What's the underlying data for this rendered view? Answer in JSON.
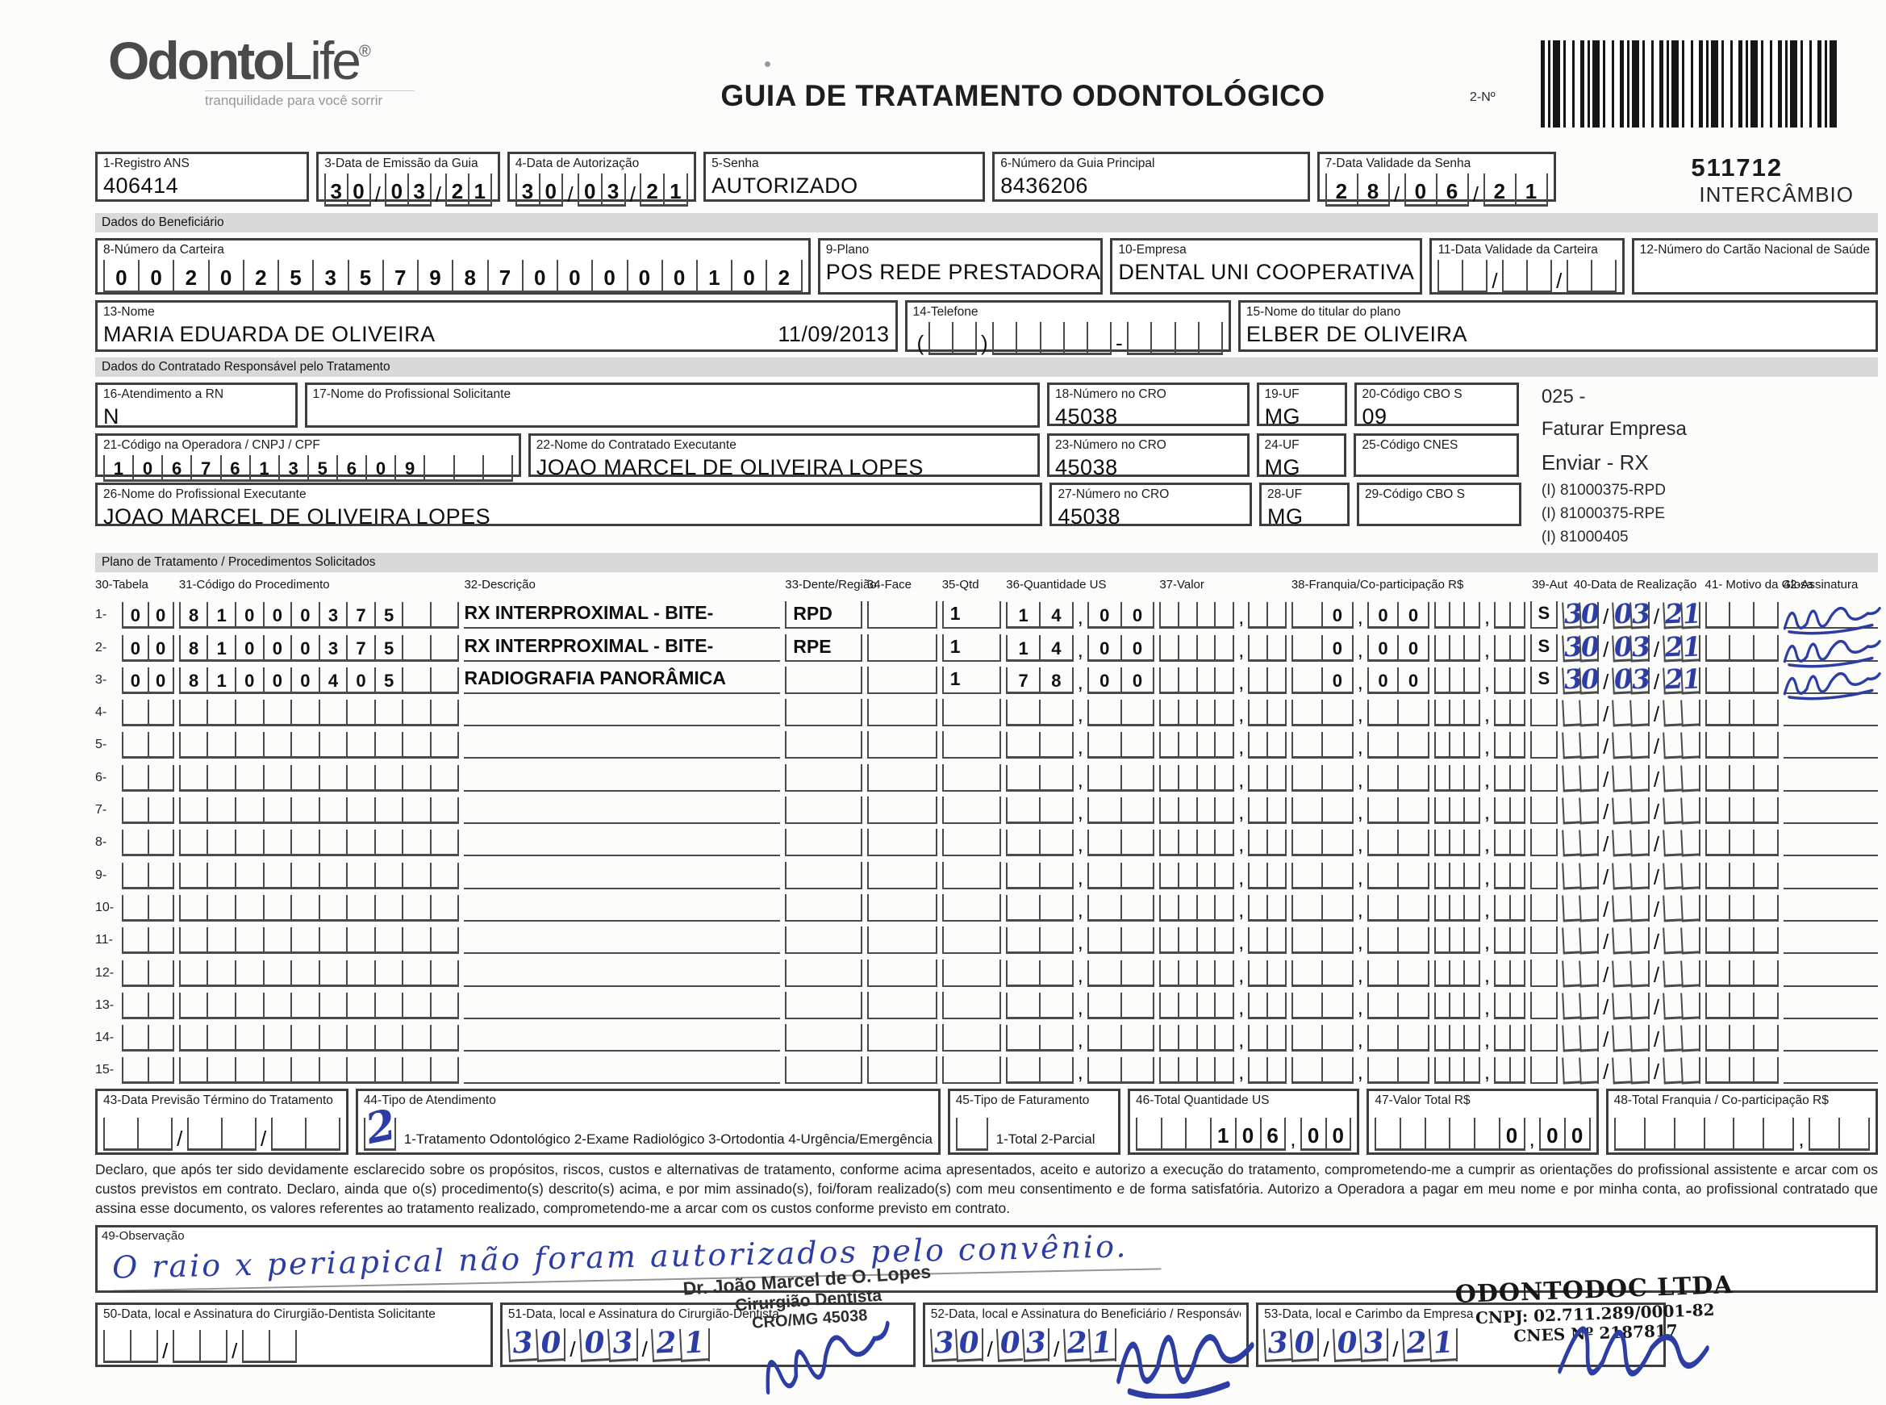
{
  "header": {
    "brand1": "Odonto",
    "brand2": "Life",
    "brand_reg": "®",
    "tagline": "tranquilidade para você sorrir",
    "title": "GUIA DE TRATAMENTO ODONTOLÓGICO",
    "barcode_label": "2-Nº",
    "guide_number": "511712",
    "guide_mode": "INTERCÂMBIO"
  },
  "sections": {
    "beneficiary": "Dados do Beneficiário",
    "provider": "Dados do Contratado Responsável pelo Tratamento",
    "plan": "Plano de Tratamento / Procedimentos Solicitados"
  },
  "fields": {
    "registro_ans": {
      "label": "1-Registro ANS",
      "value": "406414"
    },
    "data_emissao": {
      "label": "3-Data de Emissão da Guia",
      "value": "300321"
    },
    "data_autorizacao": {
      "label": "4-Data de Autorização",
      "value": "300321"
    },
    "senha": {
      "label": "5-Senha",
      "value": "AUTORIZADO"
    },
    "numero_guia_principal": {
      "label": "6-Número da Guia Principal",
      "value": "8436206"
    },
    "data_validade_senha": {
      "label": "7-Data Validade da Senha",
      "value": "280621"
    },
    "numero_carteira": {
      "label": "8-Número da Carteira",
      "value": "00202535798700000102"
    },
    "plano": {
      "label": "9-Plano",
      "value": "POS REDE PRESTADORA"
    },
    "empresa": {
      "label": "10-Empresa",
      "value": "DENTAL UNI  COOPERATIVA"
    },
    "data_validade_carteira": {
      "label": "11-Data Validade da Carteira",
      "value": ""
    },
    "cartao_nacional_saude": {
      "label": "12-Número do Cartão Nacional de Saúde",
      "value": ""
    },
    "nome": {
      "label": "13-Nome",
      "value": "MARIA EDUARDA DE OLIVEIRA",
      "nascimento": "11/09/2013"
    },
    "telefone": {
      "label": "14-Telefone",
      "value": ""
    },
    "titular": {
      "label": "15-Nome do titular do plano",
      "value": "ELBER DE OLIVEIRA"
    },
    "atendimento_rn": {
      "label": "16-Atendimento a RN",
      "value": "N"
    },
    "prof_solicitante": {
      "label": "17-Nome do Profissional Solicitante",
      "value": ""
    },
    "cro_solicitante": {
      "label": "18-Número no CRO",
      "value": "45038"
    },
    "uf_solicitante": {
      "label": "19-UF",
      "value": "MG"
    },
    "cbo_solicitante": {
      "label": "20-Código CBO S",
      "value": "09"
    },
    "codigo_operadora": {
      "label": "21-Código na Operadora / CNPJ / CPF",
      "value": "10676135609"
    },
    "contratado_executante": {
      "label": "22-Nome do Contratado Executante",
      "value": "JOAO MARCEL DE OLIVEIRA LOPES"
    },
    "cro_executante": {
      "label": "23-Número no CRO",
      "value": "45038"
    },
    "uf_executante": {
      "label": "24-UF",
      "value": "MG"
    },
    "cnes": {
      "label": "25-Código CNES",
      "value": ""
    },
    "prof_executante": {
      "label": "26-Nome do Profissional Executante",
      "value": "JOAO MARCEL DE OLIVEIRA LOPES"
    },
    "cro_prof_executante": {
      "label": "27-Número no CRO",
      "value": "45038"
    },
    "uf_prof_executante": {
      "label": "28-UF",
      "value": "MG"
    },
    "cbo_executante": {
      "label": "29-Código CBO S",
      "value": ""
    }
  },
  "annotations": {
    "line1": "025 -",
    "line2": "Faturar Empresa",
    "line3": "Enviar - RX",
    "line4": "(I) 81000375-RPD",
    "line5": "(I) 81000375-RPE",
    "line6": "(I) 81000405"
  },
  "table": {
    "headers": {
      "h30": "30-Tabela",
      "h31": "31-Código do Procedimento",
      "h32": "32-Descrição",
      "h33": "33-Dente/Região",
      "h34": "34-Face",
      "h35": "35-Qtd",
      "h36": "36-Quantidade US",
      "h37": "37-Valor",
      "h38": "38-Franquia/Co-participação R$",
      "h39": "39-Aut",
      "h40": "40-Data de Realização",
      "h41": "41- Motivo da Glosa",
      "h42": "42-Assinatura"
    },
    "rows": [
      {
        "n": "1-",
        "tabela": "00",
        "codigo": "81000375",
        "descricao": "RX INTERPROXIMAL - BITE-",
        "dente": "RPD",
        "face": "",
        "qtd": "1",
        "qtd_us": "1400",
        "valor": "",
        "franquia": " 000",
        "extra": "",
        "aut": "S",
        "data": "300321",
        "motivo": "",
        "assinado": true
      },
      {
        "n": "2-",
        "tabela": "00",
        "codigo": "81000375",
        "descricao": "RX INTERPROXIMAL - BITE-",
        "dente": "RPE",
        "face": "",
        "qtd": "1",
        "qtd_us": "1400",
        "valor": "",
        "franquia": " 000",
        "extra": "",
        "aut": "S",
        "data": "300321",
        "motivo": "",
        "assinado": true
      },
      {
        "n": "3-",
        "tabela": "00",
        "codigo": "81000405",
        "descricao": "RADIOGRAFIA PANORÂMICA",
        "dente": "",
        "face": "",
        "qtd": "1",
        "qtd_us": "7800",
        "valor": "",
        "franquia": " 000",
        "extra": "",
        "aut": "S",
        "data": "300321",
        "motivo": "",
        "assinado": true
      },
      {
        "n": "4-",
        "tabela": "",
        "codigo": "",
        "descricao": "",
        "dente": "",
        "face": "",
        "qtd": "",
        "qtd_us": "",
        "valor": "",
        "franquia": "",
        "extra": "",
        "aut": "",
        "data": "",
        "motivo": "",
        "assinado": false
      },
      {
        "n": "5-",
        "tabela": "",
        "codigo": "",
        "descricao": "",
        "dente": "",
        "face": "",
        "qtd": "",
        "qtd_us": "",
        "valor": "",
        "franquia": "",
        "extra": "",
        "aut": "",
        "data": "",
        "motivo": "",
        "assinado": false
      },
      {
        "n": "6-",
        "tabela": "",
        "codigo": "",
        "descricao": "",
        "dente": "",
        "face": "",
        "qtd": "",
        "qtd_us": "",
        "valor": "",
        "franquia": "",
        "extra": "",
        "aut": "",
        "data": "",
        "motivo": "",
        "assinado": false
      },
      {
        "n": "7-",
        "tabela": "",
        "codigo": "",
        "descricao": "",
        "dente": "",
        "face": "",
        "qtd": "",
        "qtd_us": "",
        "valor": "",
        "franquia": "",
        "extra": "",
        "aut": "",
        "data": "",
        "motivo": "",
        "assinado": false
      },
      {
        "n": "8-",
        "tabela": "",
        "codigo": "",
        "descricao": "",
        "dente": "",
        "face": "",
        "qtd": "",
        "qtd_us": "",
        "valor": "",
        "franquia": "",
        "extra": "",
        "aut": "",
        "data": "",
        "motivo": "",
        "assinado": false
      },
      {
        "n": "9-",
        "tabela": "",
        "codigo": "",
        "descricao": "",
        "dente": "",
        "face": "",
        "qtd": "",
        "qtd_us": "",
        "valor": "",
        "franquia": "",
        "extra": "",
        "aut": "",
        "data": "",
        "motivo": "",
        "assinado": false
      },
      {
        "n": "10-",
        "tabela": "",
        "codigo": "",
        "descricao": "",
        "dente": "",
        "face": "",
        "qtd": "",
        "qtd_us": "",
        "valor": "",
        "franquia": "",
        "extra": "",
        "aut": "",
        "data": "",
        "motivo": "",
        "assinado": false
      },
      {
        "n": "11-",
        "tabela": "",
        "codigo": "",
        "descricao": "",
        "dente": "",
        "face": "",
        "qtd": "",
        "qtd_us": "",
        "valor": "",
        "franquia": "",
        "extra": "",
        "aut": "",
        "data": "",
        "motivo": "",
        "assinado": false
      },
      {
        "n": "12-",
        "tabela": "",
        "codigo": "",
        "descricao": "",
        "dente": "",
        "face": "",
        "qtd": "",
        "qtd_us": "",
        "valor": "",
        "franquia": "",
        "extra": "",
        "aut": "",
        "data": "",
        "motivo": "",
        "assinado": false
      },
      {
        "n": "13-",
        "tabela": "",
        "codigo": "",
        "descricao": "",
        "dente": "",
        "face": "",
        "qtd": "",
        "qtd_us": "",
        "valor": "",
        "franquia": "",
        "extra": "",
        "aut": "",
        "data": "",
        "motivo": "",
        "assinado": false
      },
      {
        "n": "14-",
        "tabela": "",
        "codigo": "",
        "descricao": "",
        "dente": "",
        "face": "",
        "qtd": "",
        "qtd_us": "",
        "valor": "",
        "franquia": "",
        "extra": "",
        "aut": "",
        "data": "",
        "motivo": "",
        "assinado": false
      },
      {
        "n": "15-",
        "tabela": "",
        "codigo": "",
        "descricao": "",
        "dente": "",
        "face": "",
        "qtd": "",
        "qtd_us": "",
        "valor": "",
        "franquia": "",
        "extra": "",
        "aut": "",
        "data": "",
        "motivo": "",
        "assinado": false
      }
    ]
  },
  "totals": {
    "previsao_termino": {
      "label": "43-Data Previsão Término do Tratamento",
      "value": ""
    },
    "tipo_atendimento": {
      "label": "44-Tipo de Atendimento",
      "written": "2",
      "options": "1-Tratamento Odontológico  2-Exame Radiológico  3-Ortodontia  4-Urgência/Emergência",
      "value": ""
    },
    "tipo_faturamento": {
      "label": "45-Tipo de Faturamento",
      "options": "1-Total  2-Parcial",
      "value": ""
    },
    "total_quantidade_us": {
      "label": "46-Total Quantidade US",
      "value": "   10600"
    },
    "valor_total": {
      "label": "47-Valor Total R$",
      "value": "     000"
    },
    "total_franquia": {
      "label": "48-Total Franquia / Co-participação R$",
      "value": ""
    }
  },
  "declaration": "Declaro, que após ter sido devidamente esclarecido sobre os propósitos, riscos, custos e alternativas de tratamento, conforme acima apresentados, aceito e autorizo a execução do tratamento, comprometendo-me a cumprir as orientações do profissional assistente e arcar com os custos previstos em contrato. Declaro, ainda que o(s) procedimento(s) descrito(s) acima, e por mim assinado(s), foi/foram realizado(s) com meu consentimento e de forma satisfatória. Autorizo a Operadora a pagar em meu nome e por minha conta, ao profissional contratado que assina esse documento, os valores referentes ao tratamento realizado, comprometendo-me a arcar com os custos conforme previsto em contrato.",
  "observacao": {
    "label": "49-Observação",
    "written": "O raio x periapical não foram autorizados pelo convênio."
  },
  "signatures": {
    "f50": {
      "label": "50-Data, local e Assinatura do Cirurgião-Dentista Solicitante",
      "date": ""
    },
    "f51": {
      "label": "51-Data, local e Assinatura do Cirurgião-Dentista",
      "date": "300321",
      "stamp1": "Dr. João Marcel de O. Lopes",
      "stamp2": "Cirurgião Dentista",
      "stamp3": "CRO/MG 45038"
    },
    "f52": {
      "label": "52-Data, local e Assinatura do Beneficiário / Responsável",
      "date": "300321"
    },
    "f53": {
      "label": "53-Data, local e Carimbo da Empresa",
      "date": "300321",
      "stamp1": "ODONTODOC LTDA",
      "stamp2": "CNPJ: 02.711.289/0001-82",
      "stamp3": "CNES Nº 2187817"
    }
  }
}
